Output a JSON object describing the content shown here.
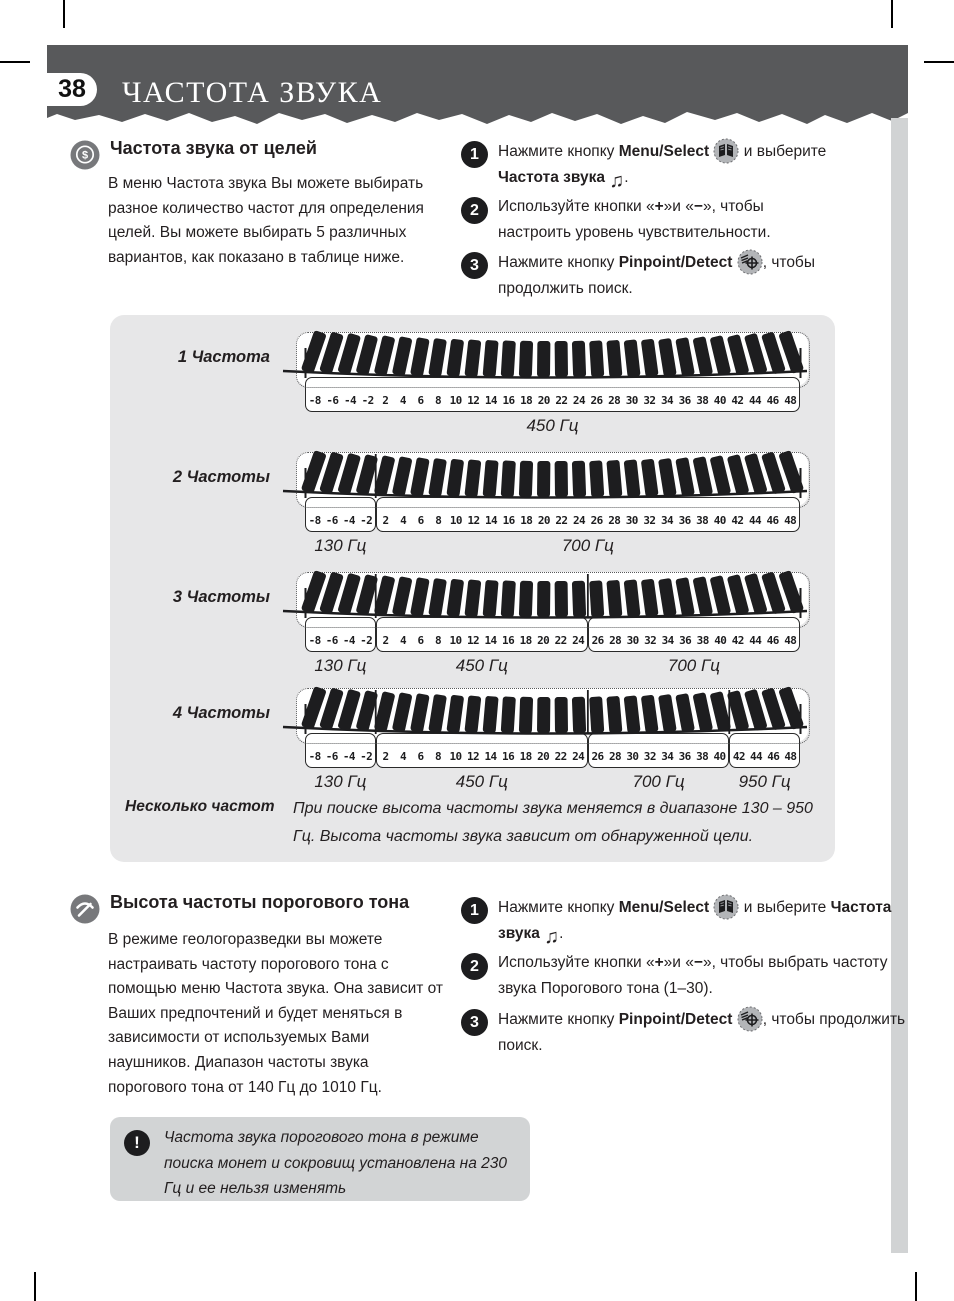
{
  "page": {
    "number": "38",
    "title": "ЧАСТОТА ЗВУКА"
  },
  "colors": {
    "header_bg": "#58595b",
    "panel_bg": "#e7e7e8",
    "note_bg": "#d2d4d5",
    "ink": "#231f20",
    "icon_gray": "#77787b"
  },
  "section1": {
    "heading": "Частота звука от целей",
    "body": "В меню Частота звука Вы можете выбирать разное количество частот для определения целей. Вы можете выбирать 5 различных вариантов, как показано в таблице ниже.",
    "steps": [
      {
        "num": "1",
        "t1": "Нажмите кнопку ",
        "b1": "Menu/Select",
        "t2": " и выберите ",
        "b2": "Частота звука",
        "t3": "."
      },
      {
        "num": "2",
        "t1": "Используйте кнопки «",
        "b1": "+",
        "t2": "»и «",
        "b2": "−",
        "t3": "», чтобы настроить уровень чувствительности."
      },
      {
        "num": "3",
        "t1": "Нажмите кнопку ",
        "b1": "Pinpoint/Detect",
        "t3": ", чтобы продолжить поиск."
      }
    ]
  },
  "chart": {
    "type": "table",
    "scale_numbers": [
      "-8",
      "-6",
      "-4",
      "-2",
      "2",
      "4",
      "6",
      "8",
      "10",
      "12",
      "14",
      "16",
      "18",
      "20",
      "22",
      "24",
      "26",
      "28",
      "30",
      "32",
      "34",
      "36",
      "38",
      "40",
      "42",
      "44",
      "46",
      "48"
    ],
    "rows": [
      {
        "label": "1 Частота",
        "groups": [
          {
            "from": 0,
            "to": 27,
            "hz": "450 Гц"
          }
        ]
      },
      {
        "label": "2 Частоты",
        "groups": [
          {
            "from": 0,
            "to": 3,
            "hz": "130 Гц"
          },
          {
            "from": 4,
            "to": 27,
            "hz": "700 Гц"
          }
        ]
      },
      {
        "label": "3 Частоты",
        "groups": [
          {
            "from": 0,
            "to": 3,
            "hz": "130 Гц"
          },
          {
            "from": 4,
            "to": 15,
            "hz": "450 Гц"
          },
          {
            "from": 16,
            "to": 27,
            "hz": "700 Гц"
          }
        ]
      },
      {
        "label": "4 Частоты",
        "groups": [
          {
            "from": 0,
            "to": 3,
            "hz": "130 Гц"
          },
          {
            "from": 4,
            "to": 15,
            "hz": "450 Гц"
          },
          {
            "from": 16,
            "to": 23,
            "hz": "700 Гц"
          },
          {
            "from": 24,
            "to": 27,
            "hz": "950 Гц"
          }
        ]
      }
    ],
    "note_label": "Несколько частот",
    "note_text": "При поиске высота частоты звука меняется в диапазоне 130 – 950 Гц. Высота частоты звука зависит от обнаруженной цели."
  },
  "section2": {
    "heading": "Высота частоты порогового тона",
    "body": "В режиме геологоразведки вы можете настраивать частоту порогового тона с помощью меню Частота звука. Она зависит от Ваших предпочтений и будет меняться в зависимости от используемых Вами наушников. Диапазон частоты звука порогового тона от 140 Гц до 1010 Гц.",
    "steps": [
      {
        "num": "1",
        "t1": "Нажмите кнопку ",
        "b1": "Menu/Select",
        "t2": " и выберите ",
        "b2": "Частота звука",
        "t3": "."
      },
      {
        "num": "2",
        "t1": "Используйте кнопки «",
        "b1": "+",
        "t2": "»и «",
        "b2": "−",
        "t3": "», чтобы выбрать частоту звука Порогового тона (1–30)."
      },
      {
        "num": "3",
        "t1": "Нажмите кнопку ",
        "b1": "Pinpoint/Detect",
        "t3": ", чтобы продолжить поиск."
      }
    ]
  },
  "warning": {
    "text": "Частота звука порогового тона в режиме поиска монет и сокровищ установлена на 230 Гц и ее нельзя изменять"
  }
}
